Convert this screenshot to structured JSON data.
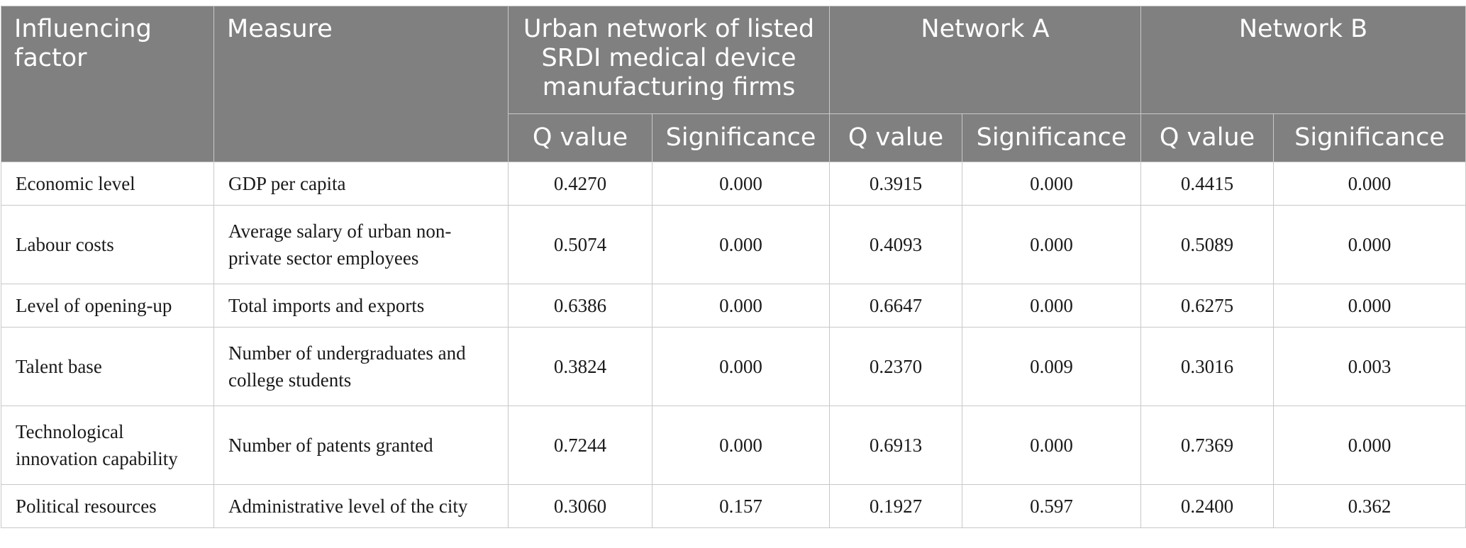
{
  "header": {
    "influencing_factor": "Influencing factor",
    "measure": "Measure",
    "groups": [
      "Urban network of listed SRDI medical device manufacturing firms",
      "Network A",
      "Network B"
    ],
    "q_value": "Q value",
    "significance": "Significance"
  },
  "rows": [
    {
      "factor": "Economic level",
      "measure": "GDP per capita",
      "values": [
        "0.4270",
        "0.000",
        "0.3915",
        "0.000",
        "0.4415",
        "0.000"
      ]
    },
    {
      "factor": "Labour costs",
      "measure": "Average salary of urban non-private sector employees",
      "values": [
        "0.5074",
        "0.000",
        "0.4093",
        "0.000",
        "0.5089",
        "0.000"
      ]
    },
    {
      "factor": "Level of opening-up",
      "measure": "Total imports and exports",
      "values": [
        "0.6386",
        "0.000",
        "0.6647",
        "0.000",
        "0.6275",
        "0.000"
      ]
    },
    {
      "factor": "Talent base",
      "measure": "Number of undergraduates and college students",
      "values": [
        "0.3824",
        "0.000",
        "0.2370",
        "0.009",
        "0.3016",
        "0.003"
      ]
    },
    {
      "factor": "Technological innovation capability",
      "measure": "Number of patents granted",
      "values": [
        "0.7244",
        "0.000",
        "0.6913",
        "0.000",
        "0.7369",
        "0.000"
      ]
    },
    {
      "factor": "Political resources",
      "measure": "Administrative level of the city",
      "values": [
        "0.3060",
        "0.157",
        "0.1927",
        "0.597",
        "0.2400",
        "0.362"
      ]
    }
  ]
}
